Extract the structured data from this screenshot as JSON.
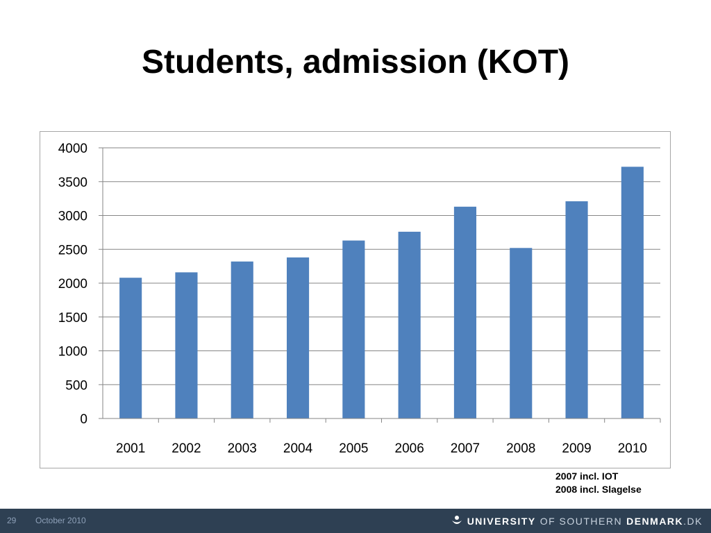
{
  "slide": {
    "title": "Students, admission (KOT)",
    "notes": [
      "2007 incl. IOT",
      "2008 incl. Slagelse"
    ]
  },
  "footer": {
    "page_number": "29",
    "date": "October 2010",
    "brand_part1": "UNIVERSITY",
    "brand_part2": "OF SOUTHERN",
    "brand_part3": "DENMARK",
    "brand_part4": ".DK",
    "logo_icon": "sdu-logo-icon"
  },
  "chart_data": {
    "type": "bar",
    "title": "",
    "xlabel": "",
    "ylabel": "",
    "categories": [
      "2001",
      "2002",
      "2003",
      "2004",
      "2005",
      "2006",
      "2007",
      "2008",
      "2009",
      "2010"
    ],
    "values": [
      2080,
      2160,
      2320,
      2380,
      2630,
      2760,
      3130,
      2520,
      3210,
      3720
    ],
    "ylim": [
      0,
      4000
    ],
    "yticks": [
      0,
      500,
      1000,
      1500,
      2000,
      2500,
      3000,
      3500,
      4000
    ],
    "grid": true,
    "legend": "none",
    "bar_color": "#4f81bd",
    "grid_color": "#868686"
  }
}
